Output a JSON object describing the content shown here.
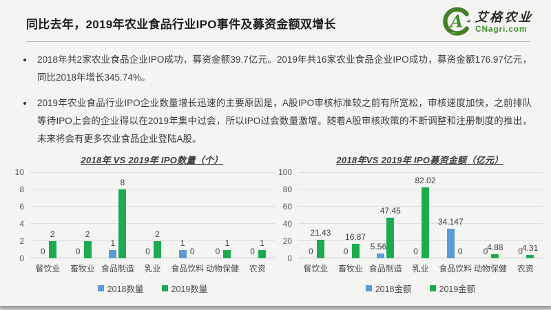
{
  "slide": {
    "title": "同比去年，2019年农业食品行业IPO事件及募资金额双增长",
    "logo": {
      "icon": "cnagri-logo",
      "brand_cn": "艾格农业",
      "domain": "CNagri.com",
      "brand_green": "#3f8f2c"
    },
    "bullets": [
      "2018年共2家农业食品企业IPO成功，募资金额39.7亿元。2019年共16家农业食品企业IPO成功，募资金额176.97亿元，同比2018年增长345.74%。",
      "2019年农业食品行业IPO企业数量增长迅速的主要原因是，A股IPO审核标准较之前有所宽松，审核速度加快，之前排队等待IPO上会的企业得以在2019年集中过会，所以IPO过会数量激增。随着A股审核政策的不断调整和注册制度的推出，未来将会有更多农业食品企业登陆A股。"
    ]
  },
  "chart_data": [
    {
      "type": "bar",
      "title": "2018年 VS 2019年  IPO数量（个）",
      "categories": [
        "餐饮业",
        "畜牧业",
        "食品制造",
        "乳业",
        "食品饮料",
        "动物保健",
        "农资"
      ],
      "series": [
        {
          "name": "2018数量",
          "color": "#5B9BD5",
          "values": [
            0,
            0,
            1,
            0,
            1,
            0,
            0
          ]
        },
        {
          "name": "2019数量",
          "color": "#1CAB50",
          "values": [
            2,
            2,
            8,
            2,
            0,
            1,
            1
          ]
        }
      ],
      "xlabel": "",
      "ylabel": "",
      "ylim": [
        0,
        10
      ],
      "yticks": [
        0,
        2,
        4,
        6,
        8,
        10
      ],
      "grid": true,
      "legend_position": "bottom",
      "data_labels": true
    },
    {
      "type": "bar",
      "title": "2018年VS 2019年  IPO募资金额（亿元）",
      "categories": [
        "餐饮业",
        "畜牧业",
        "食品制造",
        "乳业",
        "食品饮料",
        "动物保健",
        "农资"
      ],
      "series": [
        {
          "name": "2018金额",
          "color": "#5B9BD5",
          "values": [
            0,
            0,
            5.565,
            0,
            34.147,
            0,
            0
          ]
        },
        {
          "name": "2019金额",
          "color": "#1CAB50",
          "values": [
            21.43,
            16.87,
            47.45,
            82.02,
            0,
            4.88,
            4.31
          ]
        }
      ],
      "xlabel": "",
      "ylabel": "",
      "ylim": [
        0,
        100
      ],
      "yticks": [
        0,
        20,
        40,
        60,
        80,
        100
      ],
      "grid": true,
      "legend_position": "bottom",
      "data_labels": true
    }
  ]
}
